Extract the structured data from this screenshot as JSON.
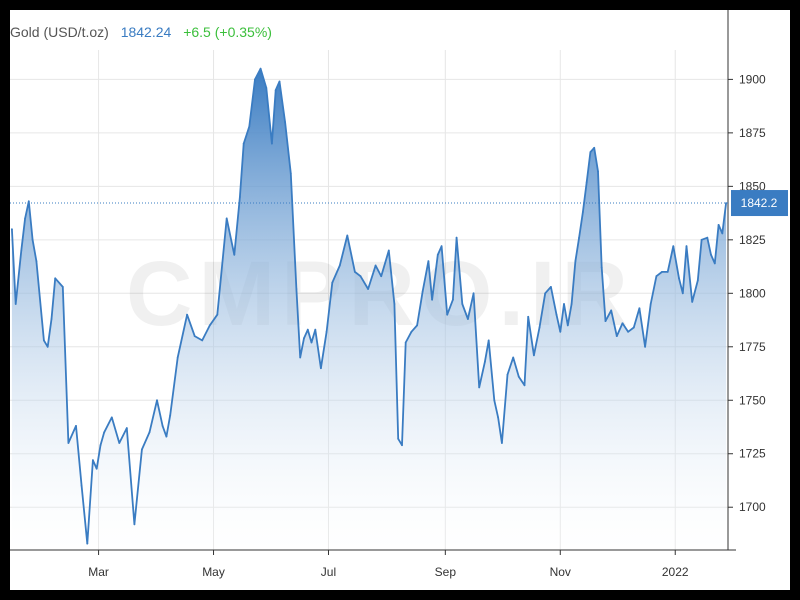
{
  "header": {
    "title": "Gold (USD/t.oz)",
    "price": "1842.24",
    "change": "+6.5 (+0.35%)"
  },
  "watermark": "CMPRO.IR",
  "colors": {
    "line": "#3a7cc2",
    "fill_top": "#3a7cc2",
    "fill_bottom": "#ffffff",
    "grid": "#e6e6e6",
    "badge": "#3a7cc2",
    "change": "#3bbf3b"
  },
  "chart_data": {
    "type": "area",
    "ylim": [
      1680,
      1910
    ],
    "y_ticks": [
      1700,
      1725,
      1750,
      1775,
      1800,
      1825,
      1850,
      1875,
      1900
    ],
    "x_tick_labels": [
      "Mar",
      "May",
      "Jul",
      "Sep",
      "Nov",
      "2022"
    ],
    "x_tick_dates": [
      "2021-03-01",
      "2021-05-01",
      "2021-07-01",
      "2021-09-01",
      "2021-11-01",
      "2022-01-01"
    ],
    "last_value": 1842.2,
    "last_value_label": "1842.2",
    "x": [
      "2021-01-14",
      "2021-01-16",
      "2021-01-19",
      "2021-01-21",
      "2021-01-23",
      "2021-01-25",
      "2021-01-27",
      "2021-01-31",
      "2021-02-02",
      "2021-02-04",
      "2021-02-06",
      "2021-02-10",
      "2021-02-13",
      "2021-02-17",
      "2021-02-20",
      "2021-02-23",
      "2021-02-26",
      "2021-02-28",
      "2021-03-02",
      "2021-03-04",
      "2021-03-08",
      "2021-03-12",
      "2021-03-16",
      "2021-03-20",
      "2021-03-24",
      "2021-03-28",
      "2021-04-01",
      "2021-04-04",
      "2021-04-06",
      "2021-04-08",
      "2021-04-12",
      "2021-04-17",
      "2021-04-21",
      "2021-04-25",
      "2021-04-29",
      "2021-05-03",
      "2021-05-08",
      "2021-05-12",
      "2021-05-15",
      "2021-05-17",
      "2021-05-20",
      "2021-05-23",
      "2021-05-26",
      "2021-05-29",
      "2021-06-01",
      "2021-06-03",
      "2021-06-05",
      "2021-06-08",
      "2021-06-11",
      "2021-06-14",
      "2021-06-16",
      "2021-06-18",
      "2021-06-20",
      "2021-06-22",
      "2021-06-24",
      "2021-06-27",
      "2021-06-30",
      "2021-07-03",
      "2021-07-07",
      "2021-07-11",
      "2021-07-15",
      "2021-07-18",
      "2021-07-22",
      "2021-07-26",
      "2021-07-29",
      "2021-08-02",
      "2021-08-05",
      "2021-08-07",
      "2021-08-09",
      "2021-08-11",
      "2021-08-14",
      "2021-08-17",
      "2021-08-20",
      "2021-08-23",
      "2021-08-25",
      "2021-08-28",
      "2021-08-30",
      "2021-09-02",
      "2021-09-05",
      "2021-09-07",
      "2021-09-10",
      "2021-09-13",
      "2021-09-16",
      "2021-09-19",
      "2021-09-22",
      "2021-09-24",
      "2021-09-27",
      "2021-09-29",
      "2021-10-01",
      "2021-10-04",
      "2021-10-07",
      "2021-10-10",
      "2021-10-13",
      "2021-10-15",
      "2021-10-18",
      "2021-10-21",
      "2021-10-24",
      "2021-10-27",
      "2021-10-30",
      "2021-11-01",
      "2021-11-03",
      "2021-11-05",
      "2021-11-07",
      "2021-11-09",
      "2021-11-11",
      "2021-11-13",
      "2021-11-15",
      "2021-11-17",
      "2021-11-19",
      "2021-11-21",
      "2021-11-23",
      "2021-11-25",
      "2021-11-28",
      "2021-12-01",
      "2021-12-04",
      "2021-12-07",
      "2021-12-10",
      "2021-12-13",
      "2021-12-16",
      "2021-12-19",
      "2021-12-22",
      "2021-12-25",
      "2021-12-28",
      "2021-12-31",
      "2022-01-03",
      "2022-01-05",
      "2022-01-07",
      "2022-01-10",
      "2022-01-13",
      "2022-01-15",
      "2022-01-18",
      "2022-01-20",
      "2022-01-22",
      "2022-01-24",
      "2022-01-26",
      "2022-01-28"
    ],
    "values": [
      1830,
      1795,
      1820,
      1835,
      1843,
      1825,
      1815,
      1778,
      1775,
      1788,
      1807,
      1803,
      1730,
      1738,
      1710,
      1683,
      1722,
      1718,
      1729,
      1735,
      1742,
      1730,
      1737,
      1692,
      1727,
      1735,
      1750,
      1738,
      1733,
      1743,
      1770,
      1790,
      1780,
      1778,
      1785,
      1790,
      1835,
      1818,
      1845,
      1870,
      1878,
      1900,
      1905,
      1896,
      1870,
      1895,
      1899,
      1880,
      1856,
      1802,
      1770,
      1779,
      1783,
      1777,
      1783,
      1765,
      1782,
      1805,
      1813,
      1827,
      1810,
      1808,
      1802,
      1813,
      1808,
      1820,
      1795,
      1732,
      1729,
      1777,
      1782,
      1785,
      1801,
      1815,
      1797,
      1818,
      1822,
      1790,
      1797,
      1826,
      1795,
      1788,
      1800,
      1756,
      1768,
      1778,
      1750,
      1742,
      1730,
      1762,
      1770,
      1761,
      1757,
      1789,
      1771,
      1784,
      1800,
      1803,
      1790,
      1782,
      1795,
      1785,
      1795,
      1815,
      1826,
      1838,
      1852,
      1866,
      1868,
      1857,
      1812,
      1787,
      1792,
      1780,
      1786,
      1782,
      1784,
      1793,
      1775,
      1795,
      1808,
      1810,
      1810,
      1822,
      1807,
      1800,
      1822,
      1796,
      1806,
      1825,
      1826,
      1818,
      1814,
      1832,
      1828,
      1842.2
    ]
  }
}
